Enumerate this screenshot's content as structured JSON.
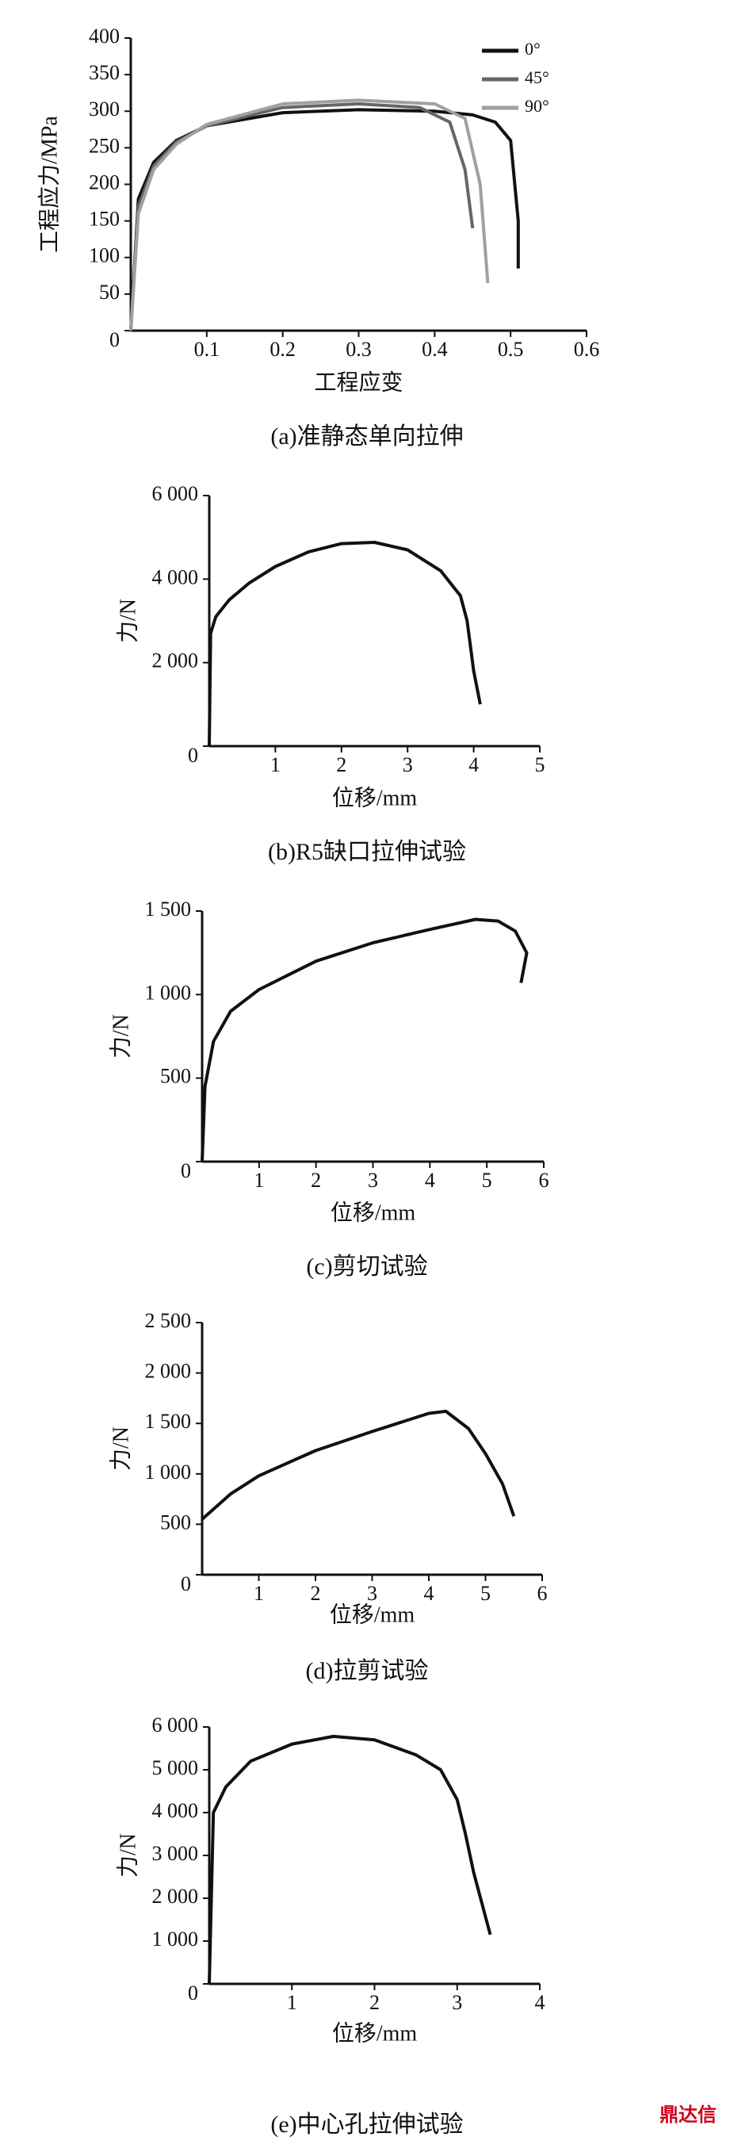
{
  "chart_data": [
    {
      "type": "line",
      "title": "(a)准静态单向拉伸",
      "xlabel": "工程应变",
      "ylabel": "工程应力/MPa",
      "xlim": [
        0,
        0.6
      ],
      "ylim": [
        0,
        400
      ],
      "xticks": [
        0.1,
        0.2,
        0.3,
        0.4,
        0.5,
        0.6
      ],
      "yticks": [
        0,
        50,
        100,
        150,
        200,
        250,
        300,
        350,
        400
      ],
      "legend": "upper right",
      "series": [
        {
          "name": "0°",
          "color": "#111111",
          "x": [
            0,
            0.01,
            0.03,
            0.06,
            0.1,
            0.2,
            0.3,
            0.4,
            0.45,
            0.48,
            0.5,
            0.51,
            0.51
          ],
          "values": [
            0,
            180,
            230,
            260,
            280,
            298,
            302,
            300,
            295,
            285,
            260,
            150,
            85
          ]
        },
        {
          "name": "45°",
          "color": "#666666",
          "x": [
            0,
            0.01,
            0.03,
            0.06,
            0.1,
            0.2,
            0.3,
            0.38,
            0.42,
            0.44,
            0.45
          ],
          "values": [
            0,
            170,
            225,
            258,
            280,
            305,
            310,
            305,
            285,
            220,
            140
          ]
        },
        {
          "name": "90°",
          "color": "#a0a0a0",
          "x": [
            0,
            0.01,
            0.03,
            0.06,
            0.1,
            0.2,
            0.3,
            0.4,
            0.44,
            0.46,
            0.47
          ],
          "values": [
            0,
            160,
            220,
            255,
            282,
            310,
            315,
            310,
            290,
            200,
            65
          ]
        }
      ]
    },
    {
      "type": "line",
      "title": "(b)R5缺口拉伸试验",
      "xlabel": "位移/mm",
      "ylabel": "力/N",
      "xlim": [
        0,
        5
      ],
      "ylim": [
        0,
        6000
      ],
      "xticks": [
        1,
        2,
        3,
        4,
        5
      ],
      "yticks": [
        0,
        {
          "value": 2000,
          "label": "2 000"
        },
        {
          "value": 4000,
          "label": "4 000"
        },
        {
          "value": 6000,
          "label": "6 000"
        }
      ],
      "series": [
        {
          "color": "#111111",
          "x": [
            0,
            0.02,
            0.1,
            0.3,
            0.6,
            1,
            1.5,
            2,
            2.5,
            3,
            3.5,
            3.8,
            3.9,
            4,
            4.1
          ],
          "values": [
            0,
            2700,
            3100,
            3500,
            3900,
            4300,
            4650,
            4850,
            4880,
            4700,
            4200,
            3600,
            3000,
            1800,
            1000
          ]
        }
      ]
    },
    {
      "type": "line",
      "title": "(c)剪切试验",
      "xlabel": "位移/mm",
      "ylabel": "力/N",
      "xlim": [
        0,
        6
      ],
      "ylim": [
        0,
        1500
      ],
      "xticks": [
        1,
        2,
        3,
        4,
        5,
        6
      ],
      "yticks": [
        0,
        500,
        {
          "value": 1000,
          "label": "1 000"
        },
        {
          "value": 1500,
          "label": "1 500"
        }
      ],
      "series": [
        {
          "color": "#111111",
          "x": [
            0,
            0.05,
            0.2,
            0.5,
            1,
            2,
            3,
            4,
            4.8,
            5.2,
            5.5,
            5.7,
            5.6
          ],
          "values": [
            0,
            450,
            720,
            900,
            1030,
            1200,
            1310,
            1390,
            1450,
            1440,
            1380,
            1250,
            1070
          ]
        }
      ]
    },
    {
      "type": "line",
      "title": "(d)拉剪试验",
      "xlabel": "位移/mm",
      "ylabel": "力/N",
      "xlim": [
        0,
        6
      ],
      "ylim": [
        0,
        2500
      ],
      "xticks": [
        1,
        2,
        3,
        4,
        5,
        6
      ],
      "yticks": [
        0,
        500,
        {
          "value": 1000,
          "label": "1 000"
        },
        {
          "value": 1500,
          "label": "1 500"
        },
        {
          "value": 2000,
          "label": "2 000"
        },
        {
          "value": 2500,
          "label": "2 500"
        }
      ],
      "series": [
        {
          "color": "#111111",
          "x": [
            0,
            0.5,
            1,
            2,
            3,
            4,
            4.3,
            4.7,
            5,
            5.3,
            5.5
          ],
          "values": [
            550,
            800,
            980,
            1230,
            1420,
            1600,
            1620,
            1450,
            1200,
            900,
            580
          ]
        }
      ]
    },
    {
      "type": "line",
      "title": "(e)中心孔拉伸试验",
      "xlabel": "位移/mm",
      "ylabel": "力/N",
      "xlim": [
        0,
        4
      ],
      "ylim": [
        0,
        6000
      ],
      "xticks": [
        1,
        2,
        3,
        4
      ],
      "yticks": [
        0,
        {
          "value": 1000,
          "label": "1 000"
        },
        {
          "value": 2000,
          "label": "2 000"
        },
        {
          "value": 3000,
          "label": "3 000"
        },
        {
          "value": 4000,
          "label": "4 000"
        },
        {
          "value": 5000,
          "label": "5 000"
        },
        {
          "value": 6000,
          "label": "6 000"
        }
      ],
      "series": [
        {
          "color": "#111111",
          "x": [
            0,
            0.05,
            0.2,
            0.5,
            1,
            1.5,
            2,
            2.5,
            2.8,
            3,
            3.1,
            3.2,
            3.4
          ],
          "values": [
            0,
            4000,
            4600,
            5200,
            5600,
            5780,
            5700,
            5350,
            5000,
            4300,
            3500,
            2600,
            1150
          ]
        }
      ]
    }
  ],
  "watermark": "鼎达信"
}
